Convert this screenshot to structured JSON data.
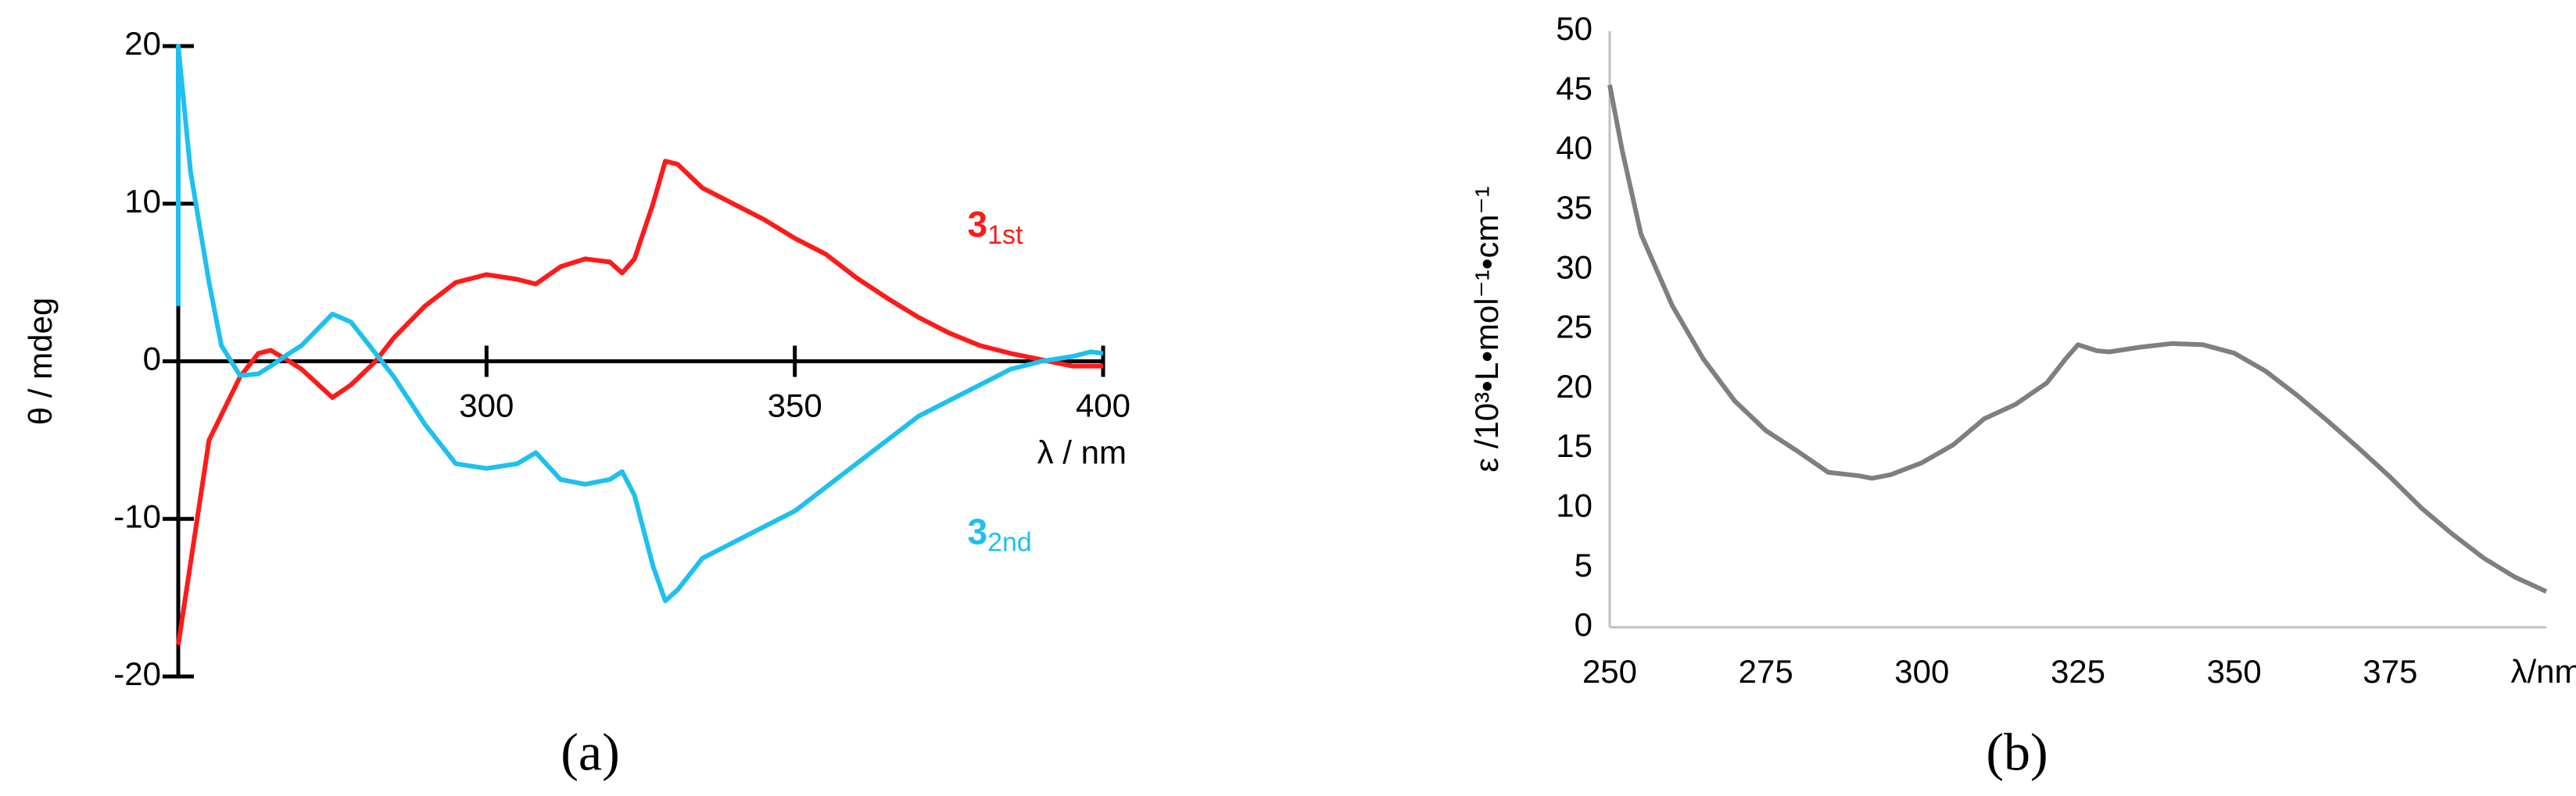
{
  "chart_data": [
    {
      "type": "line",
      "panel_label": "(a)",
      "y_label": "θ / mdeg",
      "x_label": "λ / nm",
      "xlim": [
        250,
        400
      ],
      "ylim": [
        -20,
        20
      ],
      "xticks": [
        300,
        350,
        400
      ],
      "yticks": [
        -20,
        -10,
        0,
        10,
        20
      ],
      "x_axis_at_zero": true,
      "tick_marks": true,
      "series": [
        {
          "name": "3",
          "subscript": "1st",
          "color": "#ff1a1a",
          "x": [
            250,
            255,
            260,
            263,
            265,
            268,
            270,
            275,
            278,
            282,
            285,
            290,
            295,
            300,
            305,
            308,
            312,
            316,
            320,
            322,
            324,
            327,
            329,
            331,
            335,
            340,
            345,
            350,
            355,
            360,
            365,
            370,
            375,
            380,
            385,
            390,
            395,
            400
          ],
          "values": [
            -18,
            -5,
            -1,
            0.5,
            0.7,
            0,
            -0.5,
            -2.3,
            -1.5,
            0,
            1.5,
            3.5,
            5,
            5.5,
            5.2,
            4.9,
            6,
            6.5,
            6.3,
            5.6,
            6.5,
            10,
            12.7,
            12.5,
            11,
            10,
            9,
            7.8,
            6.8,
            5.3,
            4,
            2.8,
            1.8,
            1,
            0.5,
            0.1,
            -0.3,
            -0.3
          ]
        },
        {
          "name": "3",
          "subscript": "2nd",
          "color": "#1ec0f0",
          "x": [
            250,
            250,
            252,
            255,
            257,
            260,
            263,
            265,
            268,
            270,
            275,
            278,
            280,
            283,
            285,
            290,
            295,
            300,
            305,
            308,
            312,
            316,
            320,
            322,
            324,
            327,
            329,
            331,
            335,
            340,
            345,
            350,
            355,
            360,
            365,
            370,
            375,
            380,
            385,
            390,
            395,
            398,
            400
          ],
          "values": [
            3.5,
            20,
            12,
            5,
            1,
            -0.9,
            -0.8,
            -0.3,
            0.5,
            1,
            3,
            2.5,
            1.5,
            0,
            -1,
            -4,
            -6.5,
            -6.8,
            -6.5,
            -5.8,
            -7.5,
            -7.8,
            -7.5,
            -7,
            -8.5,
            -13,
            -15.2,
            -14.5,
            -12.5,
            -11.5,
            -10.5,
            -9.5,
            -8,
            -6.5,
            -5,
            -3.5,
            -2.5,
            -1.5,
            -0.5,
            0,
            0.3,
            0.6,
            0.5
          ]
        }
      ]
    },
    {
      "type": "line",
      "panel_label": "(b)",
      "y_label": "ε /10³•L•mol⁻¹•cm⁻¹",
      "xlim": [
        250,
        400
      ],
      "ylim": [
        0,
        50
      ],
      "xticks": [
        250,
        275,
        300,
        325,
        350,
        375,
        {
          "value": 400,
          "label": "λ/nm"
        }
      ],
      "yticks": [
        0,
        5,
        10,
        15,
        20,
        25,
        30,
        35,
        40,
        45,
        50
      ],
      "x_axis_at_zero": false,
      "tick_marks": false,
      "series": [
        {
          "color": "#7f7f7f",
          "x": [
            250,
            252,
            255,
            260,
            265,
            270,
            275,
            280,
            285,
            290,
            292,
            295,
            300,
            305,
            310,
            315,
            320,
            323,
            325,
            328,
            330,
            335,
            340,
            345,
            350,
            355,
            360,
            365,
            370,
            375,
            380,
            385,
            390,
            395,
            400
          ],
          "values": [
            45.5,
            40,
            33,
            27,
            22.5,
            19,
            16.5,
            14.8,
            13,
            12.7,
            12.5,
            12.8,
            13.8,
            15.3,
            17.5,
            18.7,
            20.5,
            22.5,
            23.7,
            23.2,
            23.1,
            23.5,
            23.8,
            23.7,
            23,
            21.5,
            19.5,
            17.3,
            15,
            12.6,
            10,
            7.8,
            5.8,
            4.2,
            3
          ]
        }
      ]
    }
  ]
}
